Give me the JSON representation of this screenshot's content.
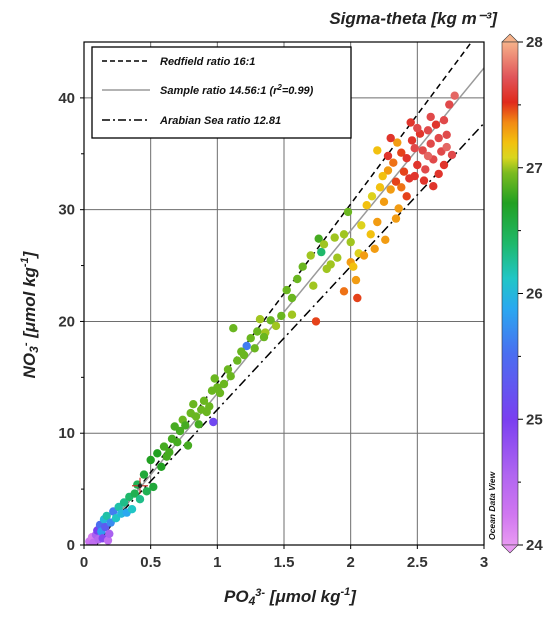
{
  "chart_data": {
    "type": "scatter",
    "xlabel": {
      "main": "PO",
      "sub": "4",
      "sup": "3-",
      "rest": " [μmol  kg",
      "unit_sup": "-1",
      "end": "]"
    },
    "ylabel": {
      "main": "NO",
      "sub": "3",
      "sup": "-",
      "rest": " [μmol  kg",
      "unit_sup": "-1",
      "end": "]"
    },
    "xlim": [
      0,
      3
    ],
    "ylim": [
      0,
      45
    ],
    "xticks": [
      "0",
      "0.5",
      "1",
      "1.5",
      "2",
      "2.5",
      "3"
    ],
    "yticks": [
      "0",
      "10",
      "20",
      "30",
      "40"
    ],
    "grid": true,
    "colorbar": {
      "title": "Sigma-theta [kg  m⁻³]",
      "range": [
        24,
        28
      ],
      "ticks": [
        "24",
        "25",
        "26",
        "27",
        "28"
      ]
    },
    "legend": {
      "placement": "top-left",
      "entries": [
        {
          "label": "Redfield ratio 16:1",
          "style": "dashed",
          "color": "#000000"
        },
        {
          "label": "Sample ratio 14.56:1 (r",
          "sup": "2",
          "label_end": "=0.99)",
          "style": "solid",
          "color": "#9a9a9a"
        },
        {
          "label": "Arabian Sea ratio 12.81",
          "style": "dashdot",
          "color": "#000000"
        }
      ]
    },
    "lines": [
      {
        "name": "redfield",
        "slope": 16,
        "intercept": -1.5
      },
      {
        "name": "sample",
        "slope": 14.56,
        "intercept": -1.0
      },
      {
        "name": "arabian",
        "slope": 12.81,
        "intercept": -0.7
      }
    ],
    "marker": {
      "x": 0.42,
      "y": 5.3
    },
    "watermark": "Ocean Data View",
    "points": [
      [
        0.04,
        0.3,
        24.3
      ],
      [
        0.06,
        0.7,
        24.2
      ],
      [
        0.07,
        0.2,
        24.4
      ],
      [
        0.09,
        0.9,
        24.6
      ],
      [
        0.1,
        1.3,
        25.0
      ],
      [
        0.11,
        0.5,
        24.5
      ],
      [
        0.12,
        1.8,
        25.5
      ],
      [
        0.13,
        1.2,
        25.8
      ],
      [
        0.14,
        0.6,
        24.9
      ],
      [
        0.15,
        2.3,
        26.0
      ],
      [
        0.16,
        1.6,
        25.3
      ],
      [
        0.17,
        2.6,
        26.2
      ],
      [
        0.18,
        0.4,
        24.4
      ],
      [
        0.19,
        1.0,
        24.6
      ],
      [
        0.2,
        2.0,
        25.7
      ],
      [
        0.22,
        3.0,
        25.6
      ],
      [
        0.24,
        2.4,
        26.1
      ],
      [
        0.26,
        3.4,
        26.2
      ],
      [
        0.28,
        2.8,
        26.0
      ],
      [
        0.3,
        3.8,
        26.3
      ],
      [
        0.32,
        2.9,
        25.9
      ],
      [
        0.34,
        4.3,
        26.4
      ],
      [
        0.36,
        3.2,
        26.1
      ],
      [
        0.38,
        4.6,
        26.5
      ],
      [
        0.4,
        5.4,
        26.5
      ],
      [
        0.42,
        4.1,
        26.3
      ],
      [
        0.45,
        6.3,
        26.6
      ],
      [
        0.47,
        4.8,
        26.5
      ],
      [
        0.5,
        7.6,
        26.7
      ],
      [
        0.52,
        5.2,
        26.6
      ],
      [
        0.55,
        8.2,
        26.7
      ],
      [
        0.58,
        7.0,
        26.7
      ],
      [
        0.6,
        8.8,
        26.8
      ],
      [
        0.62,
        7.9,
        26.8
      ],
      [
        0.64,
        8.3,
        26.8
      ],
      [
        0.66,
        9.5,
        26.8
      ],
      [
        0.68,
        10.6,
        26.8
      ],
      [
        0.7,
        9.2,
        26.8
      ],
      [
        0.72,
        10.2,
        26.8
      ],
      [
        0.74,
        11.2,
        26.9
      ],
      [
        0.76,
        10.7,
        26.8
      ],
      [
        0.78,
        8.9,
        26.8
      ],
      [
        0.8,
        11.8,
        26.9
      ],
      [
        0.82,
        12.6,
        26.9
      ],
      [
        0.84,
        11.5,
        26.9
      ],
      [
        0.86,
        10.8,
        26.8
      ],
      [
        0.88,
        12.1,
        26.9
      ],
      [
        0.9,
        12.9,
        26.9
      ],
      [
        0.92,
        11.9,
        26.9
      ],
      [
        0.94,
        12.4,
        26.9
      ],
      [
        0.96,
        13.8,
        26.9
      ],
      [
        0.98,
        14.9,
        26.9
      ],
      [
        0.97,
        11.0,
        25.1
      ],
      [
        1.0,
        14.1,
        26.9
      ],
      [
        1.02,
        13.6,
        26.9
      ],
      [
        1.05,
        14.4,
        26.9
      ],
      [
        1.08,
        15.7,
        26.9
      ],
      [
        1.1,
        15.1,
        26.9
      ],
      [
        1.12,
        19.4,
        26.9
      ],
      [
        1.15,
        16.5,
        26.9
      ],
      [
        1.2,
        17.0,
        26.9
      ],
      [
        1.22,
        17.8,
        25.6
      ],
      [
        1.25,
        18.5,
        26.9
      ],
      [
        1.28,
        17.6,
        26.9
      ],
      [
        1.3,
        19.1,
        26.9
      ],
      [
        1.32,
        20.2,
        27.0
      ],
      [
        1.36,
        19.0,
        27.0
      ],
      [
        1.4,
        20.1,
        26.9
      ],
      [
        1.44,
        19.6,
        27.0
      ],
      [
        1.48,
        20.5,
        26.9
      ],
      [
        1.52,
        22.8,
        26.9
      ],
      [
        1.56,
        22.1,
        26.9
      ],
      [
        1.6,
        23.8,
        26.9
      ],
      [
        1.64,
        24.9,
        26.9
      ],
      [
        1.7,
        25.9,
        27.0
      ],
      [
        1.72,
        23.2,
        27.0
      ],
      [
        1.74,
        20.0,
        27.5
      ],
      [
        1.76,
        27.4,
        26.8
      ],
      [
        1.78,
        26.2,
        26.4
      ],
      [
        1.8,
        26.9,
        27.0
      ],
      [
        1.82,
        24.7,
        27.0
      ],
      [
        1.85,
        25.1,
        27.0
      ],
      [
        1.88,
        27.5,
        27.0
      ],
      [
        1.9,
        25.7,
        27.0
      ],
      [
        1.95,
        27.8,
        27.0
      ],
      [
        1.98,
        29.8,
        26.9
      ],
      [
        2.0,
        27.1,
        27.0
      ],
      [
        2.0,
        25.3,
        27.3
      ],
      [
        2.02,
        24.9,
        27.2
      ],
      [
        2.04,
        23.7,
        27.3
      ],
      [
        2.06,
        26.1,
        27.1
      ],
      [
        2.08,
        28.6,
        27.1
      ],
      [
        2.1,
        25.9,
        27.3
      ],
      [
        2.12,
        30.4,
        27.2
      ],
      [
        2.15,
        27.8,
        27.2
      ],
      [
        2.16,
        31.2,
        27.1
      ],
      [
        2.18,
        26.5,
        27.3
      ],
      [
        2.2,
        28.9,
        27.3
      ],
      [
        2.22,
        32.0,
        27.2
      ],
      [
        2.25,
        30.7,
        27.3
      ],
      [
        2.26,
        27.3,
        27.3
      ],
      [
        2.28,
        33.5,
        27.3
      ],
      [
        2.3,
        31.8,
        27.3
      ],
      [
        2.32,
        34.2,
        27.4
      ],
      [
        2.34,
        32.5,
        27.5
      ],
      [
        2.35,
        36.0,
        27.3
      ],
      [
        2.36,
        30.1,
        27.3
      ],
      [
        2.38,
        35.1,
        27.5
      ],
      [
        2.4,
        33.4,
        27.5
      ],
      [
        2.42,
        34.6,
        27.6
      ],
      [
        2.44,
        32.8,
        27.6
      ],
      [
        2.46,
        36.2,
        27.6
      ],
      [
        2.48,
        35.5,
        27.7
      ],
      [
        2.5,
        34.0,
        27.6
      ],
      [
        2.52,
        36.8,
        27.6
      ],
      [
        2.54,
        35.3,
        27.7
      ],
      [
        2.56,
        33.6,
        27.7
      ],
      [
        2.58,
        37.1,
        27.7
      ],
      [
        2.6,
        35.9,
        27.7
      ],
      [
        2.62,
        34.5,
        27.7
      ],
      [
        2.64,
        37.6,
        27.6
      ],
      [
        2.66,
        36.4,
        27.7
      ],
      [
        2.68,
        35.2,
        27.7
      ],
      [
        2.7,
        38.0,
        27.7
      ],
      [
        2.72,
        36.7,
        27.7
      ],
      [
        2.74,
        39.4,
        27.7
      ],
      [
        2.76,
        34.9,
        27.7
      ],
      [
        2.78,
        40.2,
        27.8
      ],
      [
        2.6,
        38.3,
        27.7
      ],
      [
        2.5,
        37.3,
        27.7
      ],
      [
        2.45,
        37.8,
        27.6
      ],
      [
        2.38,
        32.0,
        27.4
      ],
      [
        2.3,
        36.4,
        27.6
      ],
      [
        2.28,
        34.8,
        27.6
      ],
      [
        2.55,
        32.6,
        27.6
      ],
      [
        2.62,
        32.1,
        27.6
      ],
      [
        2.42,
        31.2,
        27.5
      ],
      [
        2.66,
        33.2,
        27.6
      ],
      [
        2.7,
        34.0,
        27.6
      ],
      [
        1.95,
        22.7,
        27.4
      ],
      [
        2.05,
        22.1,
        27.5
      ],
      [
        1.56,
        20.6,
        27.0
      ],
      [
        1.35,
        18.6,
        26.9
      ],
      [
        1.18,
        17.3,
        26.9
      ],
      [
        2.2,
        35.3,
        27.2
      ],
      [
        2.24,
        33.0,
        27.2
      ],
      [
        2.34,
        29.2,
        27.3
      ],
      [
        2.48,
        33.0,
        27.6
      ],
      [
        2.58,
        34.8,
        27.8
      ],
      [
        2.72,
        35.6,
        27.8
      ]
    ]
  }
}
